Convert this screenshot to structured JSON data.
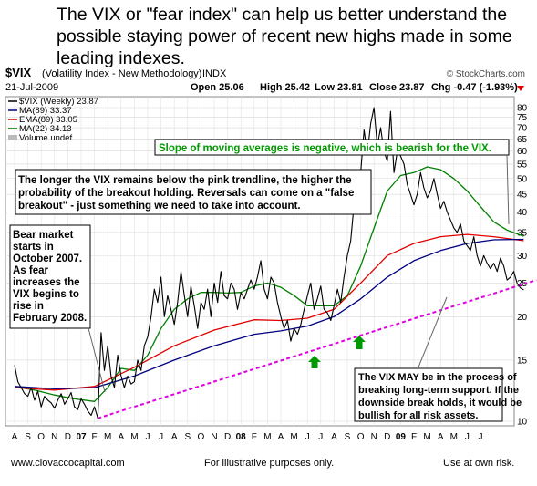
{
  "headline": "The VIX or \"fear index\" can help us better understand the possible staying power of recent new highs made in some leading indexes.",
  "chart_header": {
    "symbol": "$VIX",
    "name": "(Volatility Index - New Methodology)",
    "exchange": "INDX",
    "credit": "© StockCharts.com",
    "date": "21-Jul-2009",
    "open": "Open 25.06",
    "high": "High 25.42",
    "low": "Low 23.81",
    "close": "Close 23.87",
    "chg": "Chg -0.47 (-1.93%)"
  },
  "legend": [
    {
      "label": "$VIX (Weekly) 23.87",
      "color": "#000000"
    },
    {
      "label": "MA(89) 33.37",
      "color": "#000080"
    },
    {
      "label": "EMA(89) 33.05",
      "color": "#e00000"
    },
    {
      "label": "MA(22) 34.13",
      "color": "#008000"
    },
    {
      "label": "Volume undef",
      "color": "#888888"
    }
  ],
  "annotations": {
    "slope": "Slope of moving averages is negative, which is bearish for the VIX.",
    "trendline_1": "The longer the VIX remains below the pink trendline, the higher the",
    "trendline_2": "probability of the breakout holding.  Reversals can come on a \"false",
    "trendline_3": "breakout\" - just something we need to take into account.",
    "bear_1": "Bear market",
    "bear_2": "starts in",
    "bear_3": "October 2007.",
    "bear_4": "As fear",
    "bear_5": "increases the",
    "bear_6": "VIX begins to",
    "bear_7": "rise in",
    "bear_8": "February 2008.",
    "support_1": "The VIX MAY be in the process of",
    "support_2": "breaking long-term support.  If the",
    "support_3": "downside break holds, it would be",
    "support_4": "bullish for all risk assets."
  },
  "footer": {
    "website": "www.ciovaccocapital.com",
    "illustrative": "For illustrative purposes only.",
    "risk": "Use at own risk."
  },
  "colors": {
    "vix": "#000000",
    "ma89": "#000080",
    "ema89": "#e00000",
    "ma22": "#008000",
    "trendline": "#e000e0",
    "arrow": "#009900"
  },
  "chart_data": {
    "type": "line",
    "y_scale": "log",
    "y_ticks": [
      10,
      15,
      20,
      25,
      30,
      35,
      40,
      45,
      50,
      55,
      60,
      65,
      70,
      75,
      80
    ],
    "x_ticks": [
      "A",
      "S",
      "O",
      "N",
      "D",
      "07",
      "F",
      "M",
      "A",
      "M",
      "J",
      "J",
      "A",
      "S",
      "O",
      "N",
      "D",
      "08",
      "F",
      "M",
      "A",
      "M",
      "J",
      "J",
      "A",
      "S",
      "O",
      "N",
      "D",
      "09",
      "F",
      "M",
      "A",
      "M",
      "J",
      "J"
    ],
    "x_start_month_index": 0,
    "series": [
      {
        "name": "$VIX (Weekly)",
        "color": "#000000",
        "points": [
          [
            0.0,
            14.5
          ],
          [
            0.25,
            13.0
          ],
          [
            0.5,
            12.5
          ],
          [
            0.75,
            12.0
          ],
          [
            1.0,
            11.8
          ],
          [
            1.25,
            12.5
          ],
          [
            1.5,
            11.5
          ],
          [
            1.75,
            12.2
          ],
          [
            2.0,
            11.0
          ],
          [
            2.25,
            11.8
          ],
          [
            2.5,
            11.5
          ],
          [
            2.75,
            11.3
          ],
          [
            3.0,
            10.9
          ],
          [
            3.25,
            11.5
          ],
          [
            3.5,
            12.0
          ],
          [
            3.75,
            11.2
          ],
          [
            4.0,
            11.6
          ],
          [
            4.25,
            12.1
          ],
          [
            4.5,
            11.0
          ],
          [
            4.75,
            10.8
          ],
          [
            5.0,
            11.6
          ],
          [
            5.25,
            11.2
          ],
          [
            5.5,
            10.7
          ],
          [
            5.75,
            10.4
          ],
          [
            6.0,
            11.0
          ],
          [
            6.25,
            10.2
          ],
          [
            6.5,
            18.0
          ],
          [
            6.75,
            14.0
          ],
          [
            7.0,
            16.5
          ],
          [
            7.25,
            13.5
          ],
          [
            7.5,
            12.5
          ],
          [
            7.75,
            15.5
          ],
          [
            8.0,
            13.5
          ],
          [
            8.25,
            12.5
          ],
          [
            8.5,
            13.5
          ],
          [
            8.75,
            12.8
          ],
          [
            9.0,
            13.0
          ],
          [
            9.25,
            15.0
          ],
          [
            9.5,
            14.0
          ],
          [
            9.75,
            16.5
          ],
          [
            10.0,
            17.5
          ],
          [
            10.25,
            20.0
          ],
          [
            10.5,
            24.0
          ],
          [
            10.75,
            22.0
          ],
          [
            11.0,
            26.0
          ],
          [
            11.25,
            20.0
          ],
          [
            11.5,
            23.0
          ],
          [
            11.75,
            21.0
          ],
          [
            12.0,
            19.0
          ],
          [
            12.25,
            22.0
          ],
          [
            12.5,
            27.0
          ],
          [
            12.75,
            23.0
          ],
          [
            13.0,
            20.0
          ],
          [
            13.25,
            24.5
          ],
          [
            13.5,
            21.5
          ],
          [
            13.75,
            18.5
          ],
          [
            14.0,
            22.0
          ],
          [
            14.25,
            21.0
          ],
          [
            14.5,
            24.0
          ],
          [
            14.75,
            20.0
          ],
          [
            15.0,
            25.0
          ],
          [
            15.25,
            22.0
          ],
          [
            15.5,
            27.0
          ],
          [
            15.75,
            23.0
          ],
          [
            16.0,
            22.5
          ],
          [
            16.25,
            25.0
          ],
          [
            16.5,
            24.0
          ],
          [
            16.75,
            21.0
          ],
          [
            17.0,
            23.5
          ],
          [
            17.25,
            22.5
          ],
          [
            17.5,
            24.0
          ],
          [
            17.75,
            25.5
          ],
          [
            18.0,
            24.0
          ],
          [
            18.25,
            26.0
          ],
          [
            18.5,
            29.0
          ],
          [
            18.75,
            24.0
          ],
          [
            19.0,
            22.5
          ],
          [
            19.25,
            26.0
          ],
          [
            19.5,
            25.0
          ],
          [
            19.75,
            22.0
          ],
          [
            20.0,
            20.0
          ],
          [
            20.25,
            18.5
          ],
          [
            20.5,
            19.5
          ],
          [
            20.75,
            17.0
          ],
          [
            21.0,
            18.5
          ],
          [
            21.25,
            17.8
          ],
          [
            21.5,
            19.0
          ],
          [
            21.75,
            21.0
          ],
          [
            22.0,
            23.0
          ],
          [
            22.25,
            25.0
          ],
          [
            22.5,
            21.0
          ],
          [
            22.75,
            22.5
          ],
          [
            23.0,
            24.5
          ],
          [
            23.25,
            21.0
          ],
          [
            23.5,
            20.5
          ],
          [
            23.75,
            19.5
          ],
          [
            24.0,
            21.5
          ],
          [
            24.25,
            24.0
          ],
          [
            24.5,
            22.0
          ],
          [
            24.75,
            26.0
          ],
          [
            25.0,
            30.0
          ],
          [
            25.25,
            33.0
          ],
          [
            25.5,
            42.0
          ],
          [
            25.75,
            46.0
          ],
          [
            26.0,
            52.0
          ],
          [
            26.25,
            69.0
          ],
          [
            26.5,
            59.0
          ],
          [
            26.75,
            72.0
          ],
          [
            27.0,
            80.0
          ],
          [
            27.25,
            62.0
          ],
          [
            27.5,
            70.0
          ],
          [
            27.75,
            60.0
          ],
          [
            28.0,
            56.0
          ],
          [
            28.25,
            78.0
          ],
          [
            28.5,
            52.0
          ],
          [
            28.75,
            60.0
          ],
          [
            29.0,
            58.0
          ],
          [
            29.25,
            55.0
          ],
          [
            29.5,
            48.0
          ],
          [
            29.75,
            45.0
          ],
          [
            30.0,
            42.0
          ],
          [
            30.25,
            45.0
          ],
          [
            30.5,
            52.0
          ],
          [
            30.75,
            47.0
          ],
          [
            31.0,
            44.0
          ],
          [
            31.25,
            46.0
          ],
          [
            31.5,
            50.0
          ],
          [
            31.75,
            45.0
          ],
          [
            32.0,
            41.0
          ],
          [
            32.25,
            43.0
          ],
          [
            32.5,
            40.0
          ],
          [
            32.75,
            38.0
          ],
          [
            33.0,
            36.0
          ],
          [
            33.25,
            35.0
          ],
          [
            33.5,
            37.0
          ],
          [
            33.75,
            33.0
          ],
          [
            34.0,
            32.0
          ],
          [
            34.25,
            31.0
          ],
          [
            34.5,
            34.0
          ],
          [
            34.75,
            30.0
          ],
          [
            35.0,
            28.0
          ],
          [
            35.25,
            30.0
          ],
          [
            35.5,
            28.5
          ],
          [
            35.75,
            27.5
          ],
          [
            36.0,
            28.5
          ],
          [
            36.25,
            27.0
          ],
          [
            36.5,
            29.5
          ],
          [
            36.75,
            28.0
          ],
          [
            37.0,
            25.5
          ],
          [
            37.25,
            26.0
          ],
          [
            37.5,
            27.0
          ],
          [
            37.75,
            25.0
          ],
          [
            38.0,
            24.2
          ],
          [
            38.25,
            23.9
          ]
        ]
      },
      {
        "name": "MA(89)",
        "color": "#000080",
        "points": [
          [
            0,
            12.6
          ],
          [
            3,
            12.4
          ],
          [
            6,
            12.5
          ],
          [
            9,
            13.5
          ],
          [
            12,
            15.0
          ],
          [
            15,
            16.5
          ],
          [
            18,
            17.8
          ],
          [
            20,
            18.2
          ],
          [
            22,
            18.8
          ],
          [
            24,
            20.0
          ],
          [
            26,
            22.5
          ],
          [
            28,
            26.0
          ],
          [
            30,
            29.0
          ],
          [
            32,
            31.0
          ],
          [
            34,
            32.5
          ],
          [
            36,
            33.3
          ],
          [
            38.25,
            33.4
          ]
        ]
      },
      {
        "name": "EMA(89)",
        "color": "#e00000",
        "points": [
          [
            0,
            12.5
          ],
          [
            3,
            12.3
          ],
          [
            6,
            12.6
          ],
          [
            9,
            14.3
          ],
          [
            12,
            16.5
          ],
          [
            15,
            18.3
          ],
          [
            18,
            19.6
          ],
          [
            20,
            19.5
          ],
          [
            22,
            19.8
          ],
          [
            24,
            21.0
          ],
          [
            26,
            25.0
          ],
          [
            28,
            30.0
          ],
          [
            30,
            32.5
          ],
          [
            32,
            34.0
          ],
          [
            34,
            34.5
          ],
          [
            36,
            34.0
          ],
          [
            38.25,
            33.1
          ]
        ]
      },
      {
        "name": "MA(22)",
        "color": "#008000",
        "points": [
          [
            0,
            12.6
          ],
          [
            1.5,
            12.3
          ],
          [
            3,
            11.9
          ],
          [
            4.5,
            11.6
          ],
          [
            6,
            11.4
          ],
          [
            7,
            12.5
          ],
          [
            8,
            14.2
          ],
          [
            9,
            14.0
          ],
          [
            10,
            15.5
          ],
          [
            11,
            18.5
          ],
          [
            12,
            21.0
          ],
          [
            13,
            22.5
          ],
          [
            14,
            23.5
          ],
          [
            15,
            23.5
          ],
          [
            16,
            23.4
          ],
          [
            17,
            23.5
          ],
          [
            18,
            24.5
          ],
          [
            19,
            25.0
          ],
          [
            20,
            24.3
          ],
          [
            21,
            23.0
          ],
          [
            22,
            21.5
          ],
          [
            23,
            21.5
          ],
          [
            24,
            21.5
          ],
          [
            25,
            23.0
          ],
          [
            26,
            28.0
          ],
          [
            27,
            36.0
          ],
          [
            28,
            46.0
          ],
          [
            29,
            51.0
          ],
          [
            30,
            52.0
          ],
          [
            31,
            54.0
          ],
          [
            32,
            53.0
          ],
          [
            33,
            50.0
          ],
          [
            34,
            46.0
          ],
          [
            35,
            41.5
          ],
          [
            36,
            37.5
          ],
          [
            37,
            35.5
          ],
          [
            38.25,
            34.1
          ]
        ]
      }
    ],
    "trendline": {
      "from": [
        6.25,
        10.2
      ],
      "to": [
        39.2,
        25.5
      ]
    }
  }
}
